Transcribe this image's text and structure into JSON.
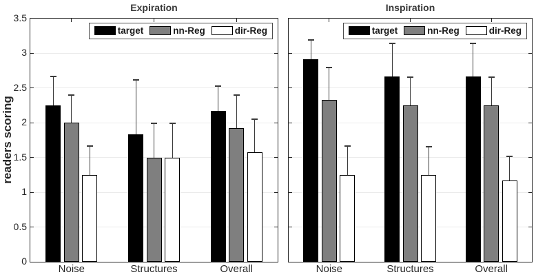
{
  "figure": {
    "ylabel": "readers scoring",
    "yticks": [
      "0",
      "0.5",
      "1",
      "1.5",
      "2",
      "2.5",
      "3",
      "3.5"
    ],
    "colors": {
      "target": "#000000",
      "nn_reg": "#7f7f7f",
      "dir_reg": "#ffffff",
      "axis": "#262626",
      "grid": "#ebebeb",
      "errorbar": "#3a3a3a",
      "legend_border": "#4d4d4d",
      "background": "#ffffff"
    },
    "legend_labels": [
      "target",
      "nn-Reg",
      "dir-Reg"
    ]
  },
  "chart_data": [
    {
      "type": "bar",
      "title": "Expiration",
      "categories": [
        "Noise",
        "Structures",
        "Overall"
      ],
      "series": [
        {
          "name": "target",
          "color": "#000000",
          "values": [
            2.25,
            1.83,
            2.17
          ],
          "errors_up": [
            0.43,
            0.8,
            0.37
          ]
        },
        {
          "name": "nn-Reg",
          "color": "#7f7f7f",
          "values": [
            2.0,
            1.5,
            1.92
          ],
          "errors_up": [
            0.41,
            0.5,
            0.49
          ]
        },
        {
          "name": "dir-Reg",
          "color": "#ffffff",
          "values": [
            1.25,
            1.5,
            1.58
          ],
          "errors_up": [
            0.43,
            0.5,
            0.48
          ]
        }
      ],
      "ylabel": "readers scoring",
      "ylim": [
        0,
        3.5
      ],
      "ytick_step": 0.5,
      "grid": "y",
      "error_bars": "upper-only",
      "legend_position": "top-right"
    },
    {
      "type": "bar",
      "title": "Inspiration",
      "categories": [
        "Noise",
        "Structures",
        "Overall"
      ],
      "series": [
        {
          "name": "target",
          "color": "#000000",
          "values": [
            2.92,
            2.67,
            2.67
          ],
          "errors_up": [
            0.28,
            0.48,
            0.48
          ]
        },
        {
          "name": "nn-Reg",
          "color": "#7f7f7f",
          "values": [
            2.33,
            2.25,
            2.25
          ],
          "errors_up": [
            0.48,
            0.42,
            0.42
          ]
        },
        {
          "name": "dir-Reg",
          "color": "#ffffff",
          "values": [
            1.25,
            1.25,
            1.17
          ],
          "errors_up": [
            0.43,
            0.42,
            0.36
          ]
        }
      ],
      "ylabel": "",
      "ylim": [
        0,
        3.5
      ],
      "ytick_step": 0.5,
      "grid": "y",
      "error_bars": "upper-only",
      "legend_position": "top-right"
    }
  ]
}
